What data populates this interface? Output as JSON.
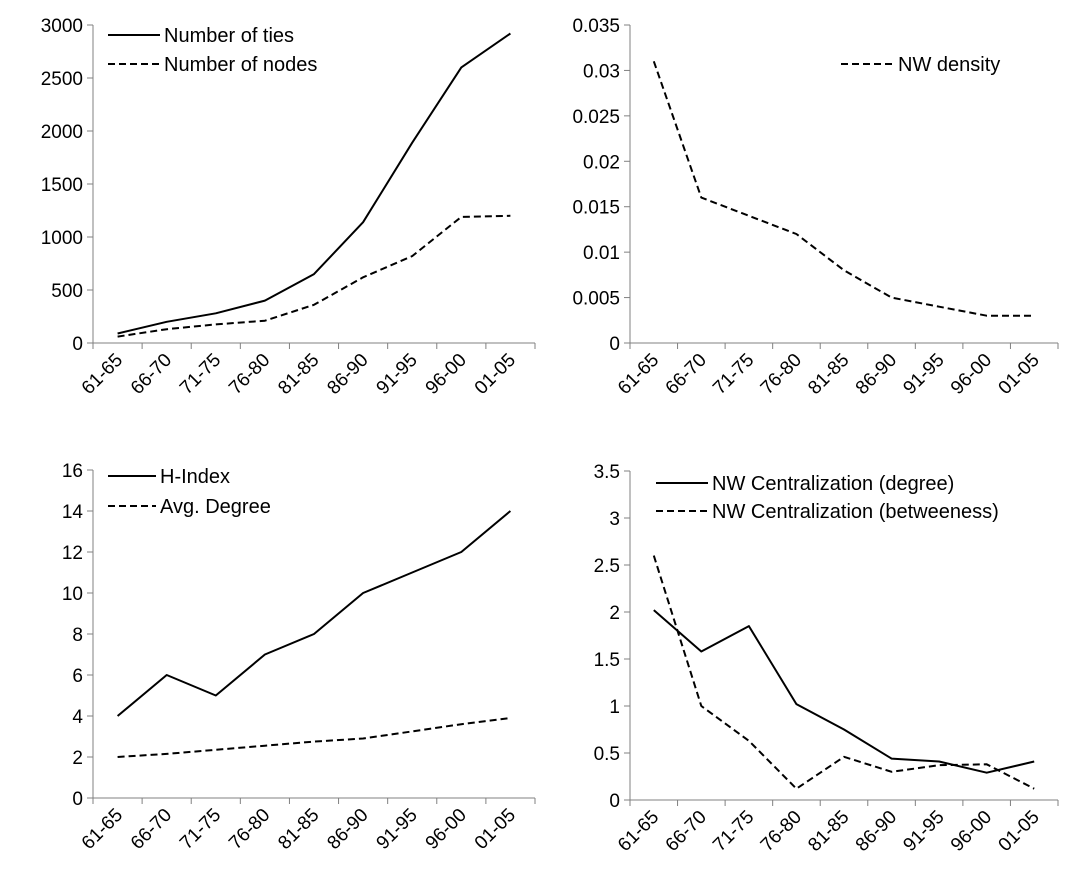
{
  "chart_data": [
    {
      "type": "line",
      "categories": [
        "61-65",
        "66-70",
        "71-75",
        "76-80",
        "81-85",
        "86-90",
        "91-95",
        "96-00",
        "01-05"
      ],
      "ylim": [
        0,
        3000
      ],
      "yticks": [
        "0",
        "500",
        "1000",
        "1500",
        "2000",
        "2500",
        "3000"
      ],
      "legend_position": "top-left",
      "series": [
        {
          "name": "Number of ties",
          "style": "solid",
          "values": [
            90,
            200,
            280,
            400,
            650,
            1140,
            1890,
            2600,
            2920
          ]
        },
        {
          "name": "Number of nodes",
          "style": "dashed",
          "values": [
            60,
            130,
            175,
            210,
            360,
            620,
            820,
            1190,
            1200
          ]
        }
      ]
    },
    {
      "type": "line",
      "categories": [
        "61-65",
        "66-70",
        "71-75",
        "76-80",
        "81-85",
        "86-90",
        "91-95",
        "96-00",
        "01-05"
      ],
      "ylim": [
        0,
        0.035
      ],
      "yticks": [
        "0",
        "0.005",
        "0.01",
        "0.015",
        "0.02",
        "0.025",
        "0.03",
        "0.035"
      ],
      "legend_position": "top-right",
      "series": [
        {
          "name": "NW density",
          "style": "dashed",
          "values": [
            0.031,
            0.016,
            0.014,
            0.012,
            0.008,
            0.005,
            0.004,
            0.003,
            0.003
          ]
        }
      ]
    },
    {
      "type": "line",
      "categories": [
        "61-65",
        "66-70",
        "71-75",
        "76-80",
        "81-85",
        "86-90",
        "91-95",
        "96-00",
        "01-05"
      ],
      "ylim": [
        0,
        16
      ],
      "yticks": [
        "0",
        "2",
        "4",
        "6",
        "8",
        "10",
        "12",
        "14",
        "16"
      ],
      "legend_position": "top-left",
      "series": [
        {
          "name": "H-Index",
          "style": "solid",
          "values": [
            4,
            6,
            5,
            7,
            8,
            10,
            11,
            12,
            14
          ]
        },
        {
          "name": "Avg. Degree",
          "style": "dashed",
          "values": [
            2.0,
            2.15,
            2.35,
            2.55,
            2.75,
            2.9,
            3.25,
            3.6,
            3.9
          ]
        }
      ]
    },
    {
      "type": "line",
      "categories": [
        "61-65",
        "66-70",
        "71-75",
        "76-80",
        "81-85",
        "86-90",
        "91-95",
        "96-00",
        "01-05"
      ],
      "ylim": [
        0,
        3.5
      ],
      "yticks": [
        "0",
        "0.5",
        "1",
        "1.5",
        "2",
        "2.5",
        "3",
        "3.5"
      ],
      "legend_position": "top-right",
      "series": [
        {
          "name": "NW Centralization (degree)",
          "style": "solid",
          "values": [
            2.02,
            1.58,
            1.85,
            1.02,
            0.75,
            0.44,
            0.41,
            0.29,
            0.41
          ]
        },
        {
          "name": "NW Centralization (betweeness)",
          "style": "dashed",
          "values": [
            2.6,
            1.0,
            0.63,
            0.12,
            0.46,
            0.3,
            0.37,
            0.38,
            0.12
          ]
        }
      ]
    }
  ]
}
